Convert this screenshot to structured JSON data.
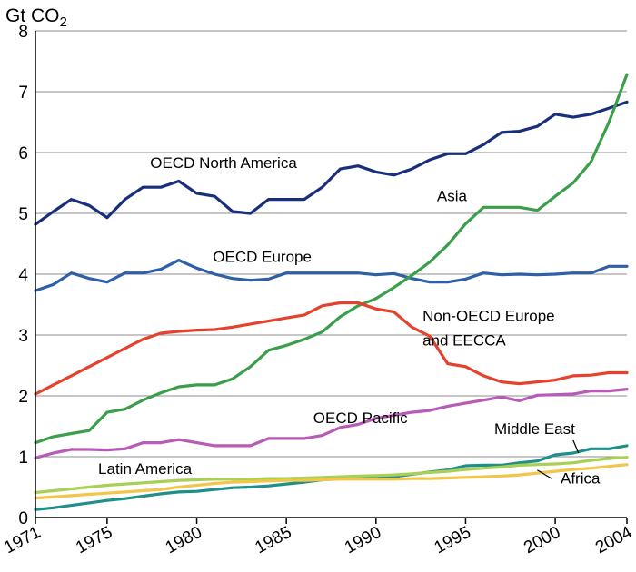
{
  "chart_data": {
    "type": "line",
    "title": "",
    "ylabel_main": "Gt CO",
    "ylabel_sub": "2",
    "xlabel": "",
    "xlim": [
      1971,
      2004
    ],
    "ylim": [
      0,
      8
    ],
    "grid": true,
    "x_ticks": [
      "1971",
      "1975",
      "1980",
      "1985",
      "1990",
      "1995",
      "2000",
      "2004"
    ],
    "y_ticks": [
      "0",
      "1",
      "2",
      "3",
      "4",
      "5",
      "6",
      "7",
      "8"
    ],
    "x": [
      1971,
      1972,
      1973,
      1974,
      1975,
      1976,
      1977,
      1978,
      1979,
      1980,
      1981,
      1982,
      1983,
      1984,
      1985,
      1986,
      1987,
      1988,
      1989,
      1990,
      1991,
      1992,
      1993,
      1994,
      1995,
      1996,
      1997,
      1998,
      1999,
      2000,
      2001,
      2002,
      2003,
      2004
    ],
    "series": [
      {
        "name": "OECD North America",
        "color": "#1a2f7c",
        "values": [
          4.82,
          5.03,
          5.23,
          5.13,
          4.93,
          5.23,
          5.43,
          5.43,
          5.53,
          5.33,
          5.28,
          5.03,
          5.0,
          5.23,
          5.23,
          5.23,
          5.43,
          5.73,
          5.78,
          5.68,
          5.63,
          5.73,
          5.88,
          5.98,
          5.98,
          6.13,
          6.33,
          6.35,
          6.43,
          6.63,
          6.58,
          6.63,
          6.73,
          6.83
        ]
      },
      {
        "name": "OECD Europe",
        "color": "#2f5fa7",
        "values": [
          3.73,
          3.83,
          4.02,
          3.93,
          3.87,
          4.02,
          4.02,
          4.08,
          4.23,
          4.1,
          4.0,
          3.93,
          3.9,
          3.92,
          4.02,
          4.02,
          4.02,
          4.02,
          4.02,
          3.99,
          4.01,
          3.93,
          3.87,
          3.87,
          3.92,
          4.02,
          3.99,
          4.0,
          3.99,
          4.0,
          4.02,
          4.02,
          4.13,
          4.13
        ]
      },
      {
        "name": "Asia",
        "color": "#3a9e4a",
        "values": [
          1.23,
          1.33,
          1.38,
          1.43,
          1.73,
          1.78,
          1.93,
          2.05,
          2.15,
          2.18,
          2.18,
          2.28,
          2.48,
          2.75,
          2.83,
          2.93,
          3.05,
          3.3,
          3.48,
          3.6,
          3.78,
          3.98,
          4.2,
          4.48,
          4.83,
          5.1,
          5.1,
          5.1,
          5.05,
          5.28,
          5.5,
          5.85,
          6.5,
          7.28
        ]
      },
      {
        "name": "Non-OECD Europe and EECCA",
        "color": "#e5412c",
        "values": [
          2.03,
          2.18,
          2.33,
          2.48,
          2.63,
          2.78,
          2.93,
          3.03,
          3.06,
          3.08,
          3.09,
          3.13,
          3.18,
          3.23,
          3.28,
          3.33,
          3.48,
          3.53,
          3.53,
          3.43,
          3.38,
          3.13,
          2.98,
          2.53,
          2.48,
          2.33,
          2.23,
          2.2,
          2.23,
          2.26,
          2.33,
          2.34,
          2.38,
          2.38
        ]
      },
      {
        "name": "OECD Pacific",
        "color": "#b85ab8",
        "values": [
          0.98,
          1.06,
          1.12,
          1.12,
          1.11,
          1.13,
          1.23,
          1.23,
          1.28,
          1.23,
          1.18,
          1.18,
          1.18,
          1.3,
          1.3,
          1.3,
          1.35,
          1.48,
          1.53,
          1.63,
          1.68,
          1.73,
          1.76,
          1.83,
          1.88,
          1.93,
          1.98,
          1.92,
          2.01,
          2.02,
          2.03,
          2.08,
          2.08,
          2.11
        ]
      },
      {
        "name": "Middle East",
        "color": "#1f8f8a",
        "values": [
          0.13,
          0.16,
          0.2,
          0.24,
          0.28,
          0.31,
          0.35,
          0.39,
          0.42,
          0.43,
          0.46,
          0.49,
          0.5,
          0.52,
          0.55,
          0.58,
          0.62,
          0.64,
          0.66,
          0.64,
          0.67,
          0.71,
          0.75,
          0.78,
          0.85,
          0.86,
          0.86,
          0.9,
          0.93,
          1.03,
          1.06,
          1.13,
          1.13,
          1.18
        ]
      },
      {
        "name": "Latin America",
        "color": "#a9cf54",
        "values": [
          0.41,
          0.44,
          0.47,
          0.5,
          0.53,
          0.55,
          0.57,
          0.59,
          0.61,
          0.62,
          0.63,
          0.63,
          0.63,
          0.64,
          0.64,
          0.65,
          0.66,
          0.67,
          0.68,
          0.69,
          0.7,
          0.72,
          0.74,
          0.76,
          0.79,
          0.81,
          0.83,
          0.86,
          0.87,
          0.88,
          0.9,
          0.94,
          0.97,
          0.99
        ]
      },
      {
        "name": "Africa",
        "color": "#f2c64a",
        "values": [
          0.32,
          0.34,
          0.36,
          0.38,
          0.4,
          0.42,
          0.44,
          0.46,
          0.5,
          0.53,
          0.56,
          0.58,
          0.59,
          0.6,
          0.61,
          0.61,
          0.62,
          0.63,
          0.63,
          0.63,
          0.63,
          0.64,
          0.64,
          0.65,
          0.66,
          0.67,
          0.68,
          0.7,
          0.73,
          0.76,
          0.79,
          0.81,
          0.84,
          0.87
        ]
      }
    ],
    "annotations": [
      {
        "text": "OECD North America",
        "series": 0,
        "anchor": [
          1977.4,
          5.75
        ]
      },
      {
        "text": "OECD Europe",
        "series": 1,
        "anchor": [
          1980.9,
          4.2
        ]
      },
      {
        "text": "Asia",
        "series": 2,
        "anchor": [
          1993.4,
          5.2
        ]
      },
      {
        "text": "Non-OECD Europe",
        "series": 3,
        "anchor": [
          1992.6,
          3.23
        ]
      },
      {
        "text": "and EECCA",
        "series": 3,
        "anchor": [
          1992.6,
          2.83
        ]
      },
      {
        "text": "OECD Pacific",
        "series": 4,
        "anchor": [
          1986.5,
          1.55
        ]
      },
      {
        "text": "Middle East",
        "series": 5,
        "anchor": [
          1996.6,
          1.37
        ]
      },
      {
        "text": "Latin America",
        "series": 6,
        "anchor": [
          1974.5,
          0.72
        ]
      },
      {
        "text": "Africa",
        "series": 7,
        "anchor": [
          2000.3,
          0.56
        ]
      }
    ],
    "leaders": [
      {
        "series": 5,
        "from": [
          2001.0,
          1.27
        ],
        "to": [
          2001.3,
          1.06
        ]
      },
      {
        "series": 7,
        "from": [
          1999.8,
          0.64
        ],
        "to": [
          1999.0,
          0.78
        ]
      }
    ]
  }
}
